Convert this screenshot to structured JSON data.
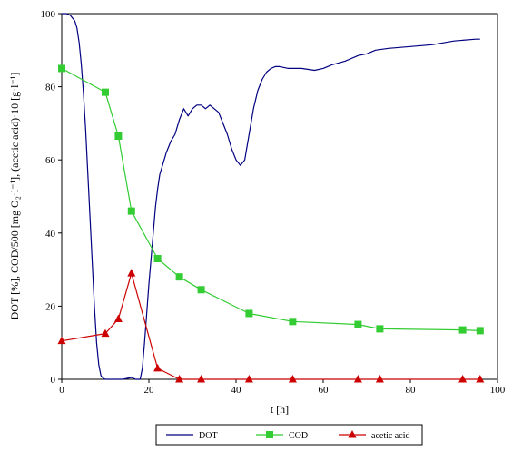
{
  "chart_data": {
    "type": "line",
    "xlabel": "t [h]",
    "ylabel": "DOT [%], COD/500 [mg O₂·l⁻¹], (acetic acid)·10 [g·l⁻¹]",
    "xlim": [
      0,
      100
    ],
    "ylim": [
      0,
      100
    ],
    "xticks": [
      0,
      20,
      40,
      60,
      80,
      100
    ],
    "yticks": [
      0,
      20,
      40,
      60,
      80,
      100
    ],
    "grid": false,
    "legend_position": "bottom",
    "series": [
      {
        "name": "DOT",
        "color": "#000080",
        "marker": "none",
        "x": [
          0,
          1,
          2,
          3,
          3.5,
          4,
          4.5,
          5,
          5.5,
          6,
          6.5,
          7,
          7.5,
          8,
          8.5,
          9,
          9.5,
          10,
          11,
          12,
          14,
          16,
          17,
          18,
          18.5,
          19,
          19.5,
          20,
          20.5,
          21,
          21.5,
          22,
          22.5,
          23,
          23.5,
          24,
          25,
          26,
          26.5,
          27,
          28,
          28.5,
          29,
          29.5,
          30,
          31,
          32,
          33,
          34,
          35,
          36,
          37,
          38,
          39,
          40,
          41,
          42,
          43,
          44,
          45,
          46,
          47,
          48,
          49,
          50,
          52,
          55,
          58,
          60,
          62,
          65,
          68,
          70,
          72,
          75,
          80,
          85,
          90,
          95,
          96
        ],
        "values": [
          100,
          100,
          99.5,
          98,
          96,
          92,
          86,
          78,
          68,
          56,
          44,
          32,
          20,
          10,
          4,
          1,
          0.3,
          0,
          0,
          0,
          0,
          0.5,
          0,
          0,
          3,
          10,
          18,
          26,
          33,
          40,
          47,
          52,
          56,
          58,
          60,
          62,
          65,
          67,
          69,
          71,
          74,
          73,
          72,
          73,
          74,
          75,
          75,
          74,
          75,
          74,
          73,
          70,
          67,
          63,
          60,
          58.5,
          60,
          67,
          74,
          79,
          82,
          84,
          85,
          85.5,
          85.5,
          85,
          85,
          84.5,
          85,
          86,
          87,
          88.5,
          89,
          90,
          90.5,
          91,
          91.5,
          92.5,
          93,
          93
        ]
      },
      {
        "name": "COD",
        "color": "#33cc33",
        "marker": "square",
        "x": [
          0,
          10,
          13,
          16,
          22,
          27,
          32,
          43,
          53,
          68,
          73,
          92,
          96
        ],
        "values": [
          85,
          78.5,
          66.5,
          46,
          33,
          28,
          24.5,
          18,
          15.8,
          15,
          13.8,
          13.5,
          13.3
        ]
      },
      {
        "name": "acetic acid",
        "color": "#cc0000",
        "marker": "triangle",
        "x": [
          0,
          10,
          13,
          16,
          22,
          27,
          32,
          43,
          53,
          68,
          73,
          92,
          96
        ],
        "values": [
          10.5,
          12.5,
          16.5,
          29,
          3,
          0,
          0,
          0,
          0,
          0,
          0,
          0,
          0
        ]
      }
    ]
  }
}
